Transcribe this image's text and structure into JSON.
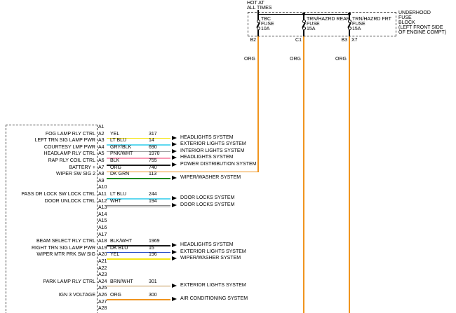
{
  "fusebox": {
    "hot_label_line1": "HOT AT",
    "hot_label_line2": "ALL TIMES",
    "block_label_lines": [
      "UNDERHOOD",
      "FUSE",
      "BLOCK",
      "(LEFT FRONT SIDE",
      "OF ENGINE COMPT)"
    ],
    "wire_color_label": "ORG",
    "wire_color": "#f0941e",
    "fuses": [
      {
        "line1": "TBC",
        "line2": "FUSE",
        "line3": "10A",
        "pin": "B2"
      },
      {
        "line1": "TRN/HAZRD REAR",
        "line2": "FUSE",
        "line3": "15A",
        "pin": "C1"
      },
      {
        "line1": "TRN/HAZRD FRT",
        "line2": "FUSE",
        "line3": "15A",
        "pin": "B3",
        "connector": "X7"
      }
    ]
  },
  "module": {
    "rows": [
      {
        "pin": "A1"
      },
      {
        "pin": "A2",
        "label": "FOG LAMP RLY CTRL",
        "code": "YEL",
        "circuit": "317",
        "color": "#f5e616",
        "system": "HEADLIGHTS SYSTEM"
      },
      {
        "pin": "A3",
        "label": "LEFT TRN SIG LAMP PWR",
        "code": "LT BLU",
        "circuit": "14",
        "color": "#5fd8f0",
        "system": "EXTERIOR LIGHTS SYSTEM"
      },
      {
        "pin": "A4",
        "label": "COURTESY LMP PWR",
        "code": "GRY/BLK",
        "circuit": "690",
        "color": "#a0a0a0",
        "system": "INTERIOR LIGHTS SYSTEM"
      },
      {
        "pin": "A5",
        "label": "HEADLAMP RLY CTRL",
        "code": "PNK/WHT",
        "circuit": "1970",
        "color": "#f898b4",
        "system": "HEADLIGHTS SYSTEM"
      },
      {
        "pin": "A6",
        "label": "RAP RLY COIL CTRL",
        "code": "BLK",
        "circuit": "755",
        "color": "#1a1a1a",
        "system": "POWER DISTRIBUTION SYSTEM"
      },
      {
        "pin": "A7",
        "label": "BATTERY +",
        "code": "ORG",
        "circuit": "740",
        "color": "#f0941e",
        "to_fuse": true
      },
      {
        "pin": "A8",
        "label": "WIPER SW SIG 2",
        "code": "DK GRN",
        "circuit": "113",
        "color": "#1f8a1f",
        "system": "WIPER/WASHER SYSTEM"
      },
      {
        "pin": "A9"
      },
      {
        "pin": "A10"
      },
      {
        "pin": "A11",
        "label": "PASS DR LOCK SW LOCK CTRL",
        "code": "LT BLU",
        "circuit": "244",
        "color": "#5fd8f0",
        "system": "DOOR LOCKS SYSTEM"
      },
      {
        "pin": "A12",
        "label": "DOOR UNLOCK CTRL",
        "code": "WHT",
        "circuit": "194",
        "color": "#ffffff",
        "system": "DOOR LOCKS SYSTEM"
      },
      {
        "pin": "A13"
      },
      {
        "pin": "A14"
      },
      {
        "pin": "A15"
      },
      {
        "pin": "A16"
      },
      {
        "pin": "A17"
      },
      {
        "pin": "A18",
        "label": "BEAM SELECT RLY CTRL",
        "code": "BLK/WHT",
        "circuit": "1969",
        "color": "#1a1a1a",
        "system": "HEADLIGHTS SYSTEM"
      },
      {
        "pin": "A19",
        "label": "RIGHT TRN SIG LAMP PWR",
        "code": "DK BLU",
        "circuit": "15",
        "color": "#2b50c8",
        "system": "EXTERIOR LIGHTS SYSTEM"
      },
      {
        "pin": "A20",
        "label": "WIPER MTR PRK SW SIG",
        "code": "YEL",
        "circuit": "196",
        "color": "#f5e616",
        "system": "WIPER/WASHER SYSTEM"
      },
      {
        "pin": "A21"
      },
      {
        "pin": "A22"
      },
      {
        "pin": "A23"
      },
      {
        "pin": "A24",
        "label": "PARK LAMP RLY CTRL",
        "code": "BRN/WHT",
        "circuit": "301",
        "color": "#c09048",
        "system": "EXTERIOR LIGHTS SYSTEM"
      },
      {
        "pin": "A25"
      },
      {
        "pin": "A26",
        "label": "IGN 3 VOLTAGE",
        "code": "ORG",
        "circuit": "300",
        "color": "#f0941e",
        "system": "AIR CONDITIONING SYSTEM"
      },
      {
        "pin": "A27"
      },
      {
        "pin": "A28"
      }
    ]
  }
}
